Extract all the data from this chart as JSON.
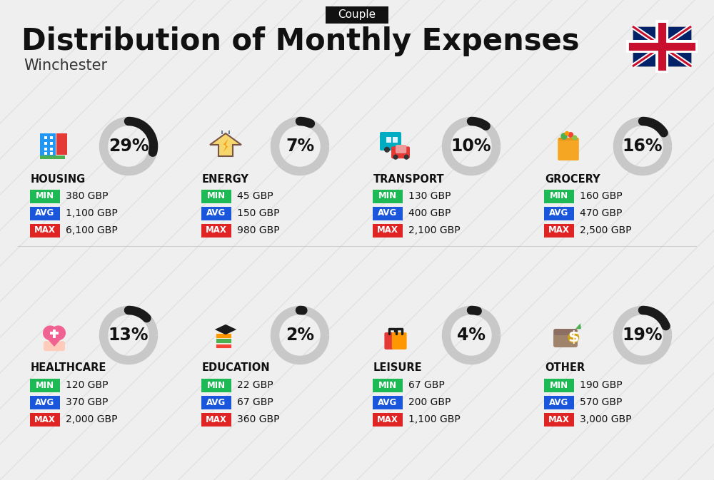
{
  "title": "Distribution of Monthly Expenses",
  "subtitle": "Winchester",
  "tag": "Couple",
  "bg_color": "#efefef",
  "categories": [
    {
      "name": "HOUSING",
      "pct": 29,
      "min_val": "380 GBP",
      "avg_val": "1,100 GBP",
      "max_val": "6,100 GBP",
      "row": 0,
      "col": 0
    },
    {
      "name": "ENERGY",
      "pct": 7,
      "min_val": "45 GBP",
      "avg_val": "150 GBP",
      "max_val": "980 GBP",
      "row": 0,
      "col": 1
    },
    {
      "name": "TRANSPORT",
      "pct": 10,
      "min_val": "130 GBP",
      "avg_val": "400 GBP",
      "max_val": "2,100 GBP",
      "row": 0,
      "col": 2
    },
    {
      "name": "GROCERY",
      "pct": 16,
      "min_val": "160 GBP",
      "avg_val": "470 GBP",
      "max_val": "2,500 GBP",
      "row": 0,
      "col": 3
    },
    {
      "name": "HEALTHCARE",
      "pct": 13,
      "min_val": "120 GBP",
      "avg_val": "370 GBP",
      "max_val": "2,000 GBP",
      "row": 1,
      "col": 0
    },
    {
      "name": "EDUCATION",
      "pct": 2,
      "min_val": "22 GBP",
      "avg_val": "67 GBP",
      "max_val": "360 GBP",
      "row": 1,
      "col": 1
    },
    {
      "name": "LEISURE",
      "pct": 4,
      "min_val": "67 GBP",
      "avg_val": "200 GBP",
      "max_val": "1,100 GBP",
      "row": 1,
      "col": 2
    },
    {
      "name": "OTHER",
      "pct": 19,
      "min_val": "190 GBP",
      "avg_val": "570 GBP",
      "max_val": "3,000 GBP",
      "row": 1,
      "col": 3
    }
  ],
  "min_color": "#1db954",
  "avg_color": "#1a56db",
  "max_color": "#e02424",
  "arc_filled_color": "#1a1a1a",
  "arc_empty_color": "#c8c8c8",
  "title_fontsize": 30,
  "subtitle_fontsize": 15,
  "tag_fontsize": 11,
  "cat_name_fontsize": 10.5,
  "pct_fontsize": 17,
  "val_fontsize": 10
}
